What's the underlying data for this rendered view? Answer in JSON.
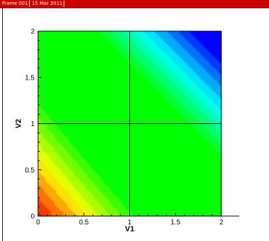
{
  "frame_bar": {
    "frame_label": "Frame 001",
    "date_label": "15 Mar 2011",
    "color": "#cc0000"
  },
  "chart_data": {
    "type": "heatmap",
    "title": "",
    "xlabel": "V1",
    "ylabel": "V2",
    "xlim": [
      0,
      2
    ],
    "ylim": [
      0,
      2
    ],
    "x_ticks": [
      0,
      0.5,
      1,
      1.5,
      2
    ],
    "y_ticks": [
      0,
      0.5,
      1,
      1.5,
      2
    ],
    "x_tick_labels": [
      "0",
      "0.5",
      "1",
      "1.5",
      "2"
    ],
    "y_tick_labels": [
      "0",
      "0.5",
      "1",
      "1.5",
      "2"
    ],
    "grid_lines": {
      "x": [
        1
      ],
      "y": [
        1
      ]
    },
    "colormap": "red-yellow-green-cyan-blue",
    "contour_levels": 18,
    "field_description_values": {
      "corner_bottom_left": "red",
      "center": "green",
      "corner_top_right": "blue"
    }
  }
}
